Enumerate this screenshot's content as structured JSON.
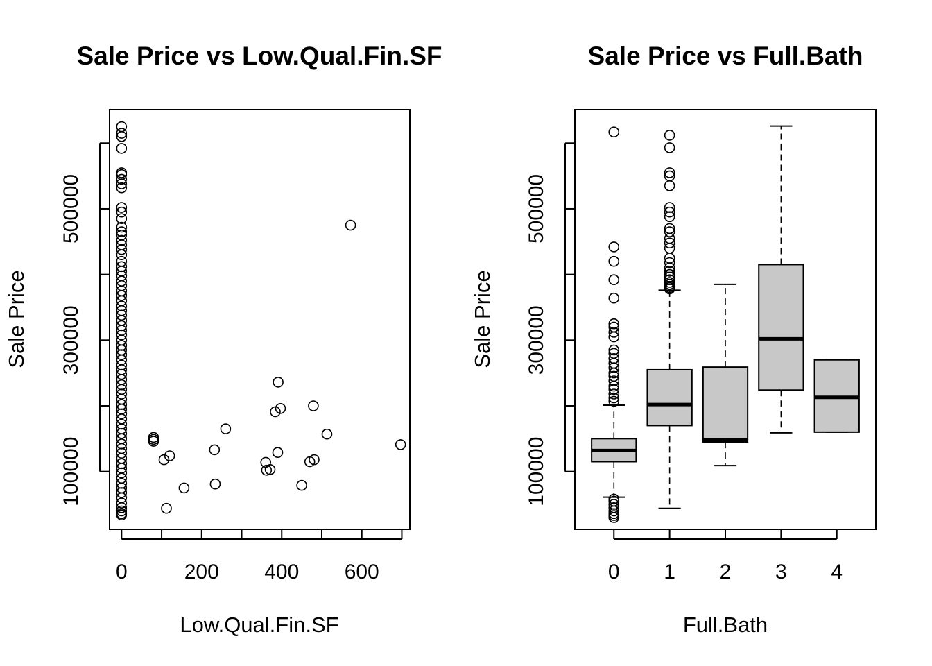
{
  "chart_data": [
    {
      "type": "scatter",
      "title": "Sale Price vs Low.Qual.Fin.SF",
      "xlabel": "Low.Qual.Fin.SF",
      "ylabel": "Sale Price",
      "xlim": [
        -30,
        720
      ],
      "ylim": [
        12000,
        651000
      ],
      "xticks": [
        0,
        100,
        200,
        300,
        400,
        500,
        600,
        700
      ],
      "xtick_labels": [
        "0",
        "",
        "200",
        "",
        "400",
        "",
        "600",
        ""
      ],
      "yticks": [
        100000,
        200000,
        300000,
        400000,
        500000,
        600000
      ],
      "ytick_labels": [
        "100000",
        "",
        "300000",
        "",
        "500000",
        ""
      ],
      "grid": false,
      "marker": "open-circle",
      "points": [
        [
          0,
          625000
        ],
        [
          0,
          615000
        ],
        [
          0,
          610000
        ],
        [
          0,
          592000
        ],
        [
          0,
          555000
        ],
        [
          0,
          552000
        ],
        [
          0,
          545000
        ],
        [
          0,
          538000
        ],
        [
          0,
          532000
        ],
        [
          0,
          502000
        ],
        [
          0,
          495000
        ],
        [
          0,
          485000
        ],
        [
          0,
          472000
        ],
        [
          0,
          465000
        ],
        [
          0,
          460000
        ],
        [
          0,
          452000
        ],
        [
          0,
          445000
        ],
        [
          0,
          438000
        ],
        [
          0,
          430000
        ],
        [
          0,
          420000
        ],
        [
          0,
          412000
        ],
        [
          0,
          405000
        ],
        [
          0,
          398000
        ],
        [
          0,
          390000
        ],
        [
          0,
          383000
        ],
        [
          0,
          375000
        ],
        [
          0,
          368000
        ],
        [
          0,
          360000
        ],
        [
          0,
          352000
        ],
        [
          0,
          345000
        ],
        [
          0,
          338000
        ],
        [
          0,
          330000
        ],
        [
          0,
          322000
        ],
        [
          0,
          315000
        ],
        [
          0,
          308000
        ],
        [
          0,
          300000
        ],
        [
          0,
          292000
        ],
        [
          0,
          285000
        ],
        [
          0,
          278000
        ],
        [
          0,
          270000
        ],
        [
          0,
          262000
        ],
        [
          0,
          255000
        ],
        [
          0,
          248000
        ],
        [
          0,
          240000
        ],
        [
          0,
          232000
        ],
        [
          0,
          225000
        ],
        [
          0,
          218000
        ],
        [
          0,
          210000
        ],
        [
          0,
          202000
        ],
        [
          0,
          195000
        ],
        [
          0,
          188000
        ],
        [
          0,
          180000
        ],
        [
          0,
          172000
        ],
        [
          0,
          165000
        ],
        [
          0,
          158000
        ],
        [
          0,
          150000
        ],
        [
          0,
          142000
        ],
        [
          0,
          135000
        ],
        [
          0,
          128000
        ],
        [
          0,
          120000
        ],
        [
          0,
          112000
        ],
        [
          0,
          105000
        ],
        [
          0,
          98000
        ],
        [
          0,
          90000
        ],
        [
          0,
          82000
        ],
        [
          0,
          75000
        ],
        [
          0,
          68000
        ],
        [
          0,
          60000
        ],
        [
          0,
          52000
        ],
        [
          0,
          45000
        ],
        [
          0,
          40000
        ],
        [
          0,
          36000
        ],
        [
          0,
          34000
        ],
        [
          80,
          152000
        ],
        [
          80,
          149000
        ],
        [
          80,
          146000
        ],
        [
          106,
          118000
        ],
        [
          112,
          44000
        ],
        [
          120,
          124000
        ],
        [
          156,
          75000
        ],
        [
          232,
          133000
        ],
        [
          234,
          81000
        ],
        [
          260,
          165000
        ],
        [
          360,
          114000
        ],
        [
          362,
          102000
        ],
        [
          371,
          103000
        ],
        [
          384,
          191000
        ],
        [
          390,
          129000
        ],
        [
          391,
          236000
        ],
        [
          397,
          196000
        ],
        [
          450,
          79000
        ],
        [
          470,
          115000
        ],
        [
          479,
          200000
        ],
        [
          481,
          118000
        ],
        [
          513,
          157000
        ],
        [
          572,
          475000
        ],
        [
          697,
          141000
        ]
      ]
    },
    {
      "type": "boxplot",
      "title": "Sale Price vs Full.Bath",
      "xlabel": "Full.Bath",
      "ylabel": "Sale Price",
      "categories": [
        "0",
        "1",
        "2",
        "3",
        "4"
      ],
      "ylim": [
        12000,
        651000
      ],
      "yticks": [
        100000,
        200000,
        300000,
        400000,
        500000,
        600000
      ],
      "ytick_labels": [
        "100000",
        "",
        "300000",
        "",
        "500000",
        ""
      ],
      "grid": false,
      "box_fill": "#c8c8c8",
      "boxes": [
        {
          "category": "0",
          "q1": 115000,
          "median": 132000,
          "q3": 150000,
          "whisker_low": 61000,
          "whisker_high": 201000,
          "outliers": [
            617000,
            442000,
            420000,
            392000,
            364000,
            325000,
            320000,
            312000,
            305000,
            285000,
            280000,
            272000,
            265000,
            258000,
            250000,
            245000,
            238000,
            230000,
            225000,
            218000,
            212000,
            207000,
            58000,
            55000,
            50000,
            45000,
            40000,
            36000,
            33000,
            30000
          ]
        },
        {
          "category": "1",
          "q1": 170000,
          "median": 202000,
          "q3": 255000,
          "whisker_low": 44000,
          "whisker_high": 376000,
          "outliers": [
            612000,
            593000,
            555000,
            550000,
            535000,
            502000,
            495000,
            488000,
            470000,
            465000,
            455000,
            448000,
            440000,
            425000,
            418000,
            410000,
            405000,
            400000,
            396000,
            392000,
            388000,
            385000,
            382000,
            380000,
            378000
          ]
        },
        {
          "category": "2",
          "q1": 145000,
          "median": 148000,
          "q3": 259000,
          "whisker_low": 109000,
          "whisker_high": 385000,
          "outliers": []
        },
        {
          "category": "3",
          "q1": 224000,
          "median": 302000,
          "q3": 415000,
          "whisker_low": 159000,
          "whisker_high": 626000,
          "outliers": []
        },
        {
          "category": "4",
          "q1": 160000,
          "median": 213000,
          "q3": 270000,
          "whisker_low": 160000,
          "whisker_high": 270000,
          "outliers": []
        }
      ]
    }
  ]
}
